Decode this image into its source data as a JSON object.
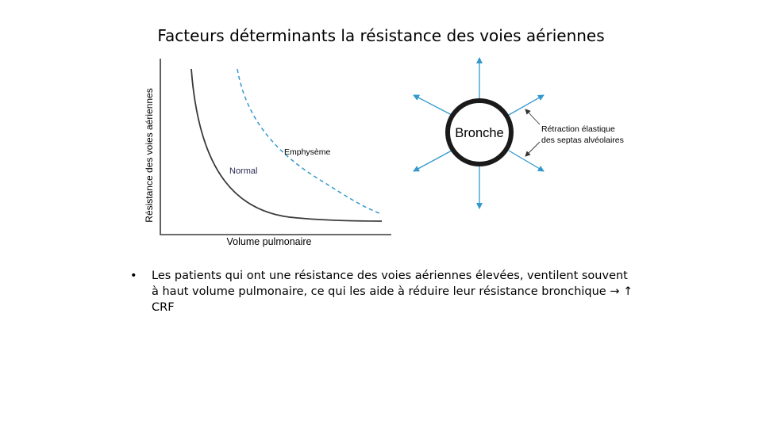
{
  "slide": {
    "title": "Facteurs déterminants la résistance des voies aériennes"
  },
  "graph": {
    "ylabel": "Résistance des voies aériennes",
    "xlabel": "Volume pulmonaire",
    "normal_label": "Normal",
    "emphysema_label": "Emphysème",
    "normal_color": "#3a3a3a",
    "emphysema_color": "#3399cc"
  },
  "bronchus": {
    "label": "Bronche",
    "annotation_line1": "Rétraction élastique",
    "annotation_line2": "des septas alvéolaires",
    "arrow_color": "#3399cc",
    "ring_color": "#1a1a1a"
  },
  "bullets": {
    "marker": "•",
    "items": [
      {
        "text": "Les patients qui ont une résistance des voies aériennes élevées, ventilent souvent à haut volume pulmonaire, ce qui les aide à réduire leur résistance bronchique → ↑ CRF"
      }
    ]
  }
}
